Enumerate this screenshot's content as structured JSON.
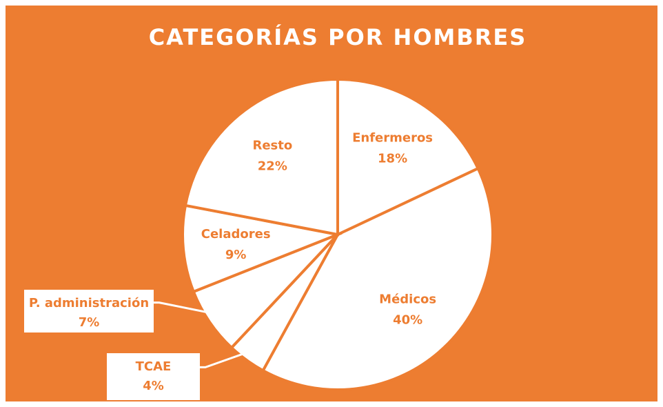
{
  "chart_data": {
    "type": "pie",
    "title": "CATEGORÍAS POR HOMBRES",
    "categories": [
      "Enfermeros",
      "Médicos",
      "TCAE",
      "P. administración",
      "Celadores",
      "Resto"
    ],
    "values": [
      18,
      40,
      4,
      7,
      9,
      22
    ],
    "value_labels": [
      "18%",
      "40%",
      "4%",
      "7%",
      "9%",
      "22%"
    ],
    "color": "#ffffff",
    "background": "#ed7d31"
  }
}
